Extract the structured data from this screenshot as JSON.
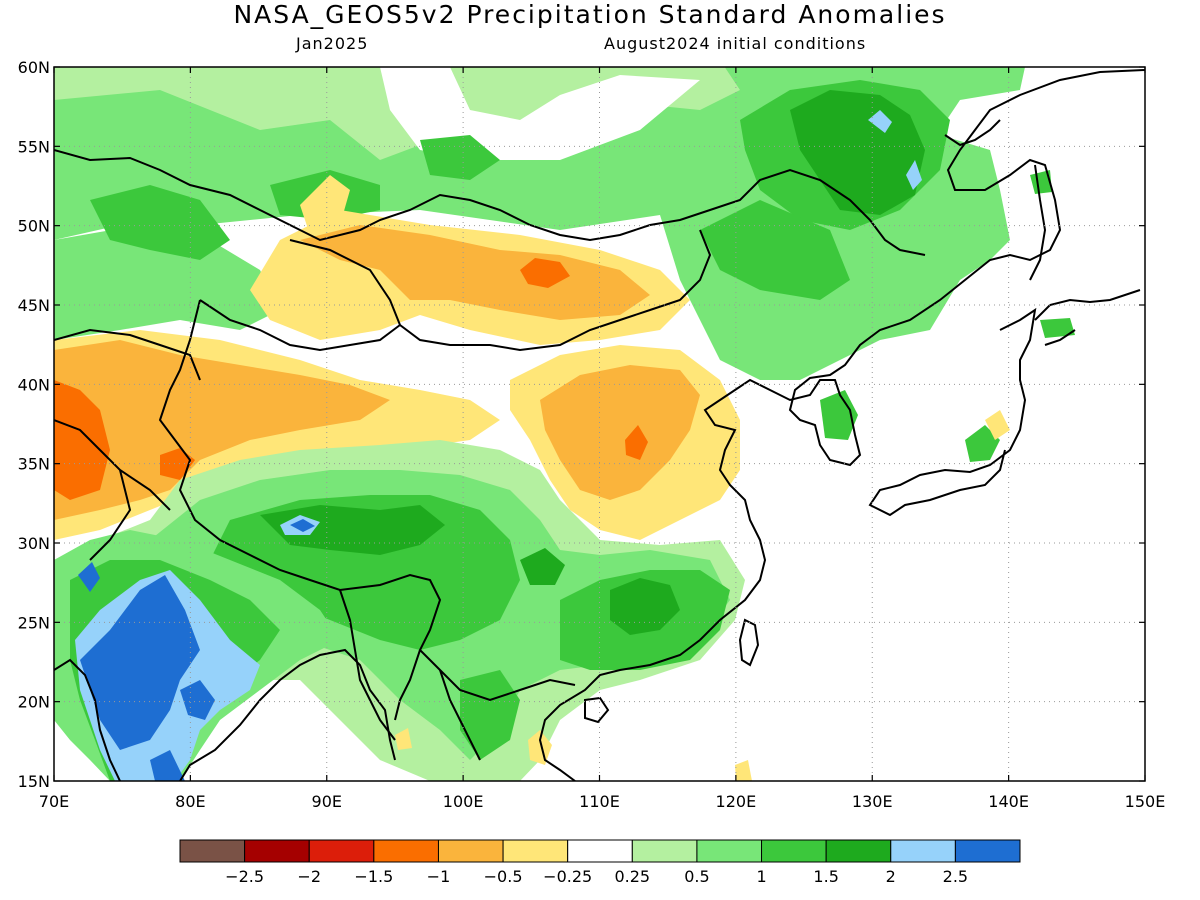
{
  "title": "NASA_GEOS5v2 Precipitation Standard Anomalies",
  "subtitle_left": "Jan2025",
  "subtitle_right": "August2024 initial conditions",
  "lat_labels": [
    "60N",
    "55N",
    "50N",
    "45N",
    "40N",
    "35N",
    "30N",
    "25N",
    "20N",
    "15N"
  ],
  "lon_labels": [
    "70E",
    "80E",
    "90E",
    "100E",
    "110E",
    "120E",
    "130E",
    "140E",
    "150E"
  ],
  "colorbar": {
    "colors": [
      "#7a5246",
      "#a50000",
      "#dc1e0a",
      "#fa6e00",
      "#fab43c",
      "#ffe678",
      "#ffffff",
      "#b4f0a0",
      "#78e678",
      "#3cc83c",
      "#1eaa1e",
      "#96d2fa",
      "#1e6ed2"
    ],
    "labels": [
      "-2.5",
      "-2",
      "-1.5",
      "-1",
      "-0.5",
      "-0.25",
      "0.25",
      "0.5",
      "1",
      "1.5",
      "2",
      "2.5"
    ]
  },
  "palette": {
    "brown": "#7a5246",
    "darkred": "#a50000",
    "red": "#dc1e0a",
    "orange": "#fa6e00",
    "lightorange": "#fab43c",
    "yellow": "#ffe678",
    "white": "#ffffff",
    "palegreen": "#b4f0a0",
    "lightgreen": "#78e678",
    "green": "#3cc83c",
    "darkgreen": "#1eaa1e",
    "lightblue": "#96d2fa",
    "blue": "#1e6ed2"
  }
}
